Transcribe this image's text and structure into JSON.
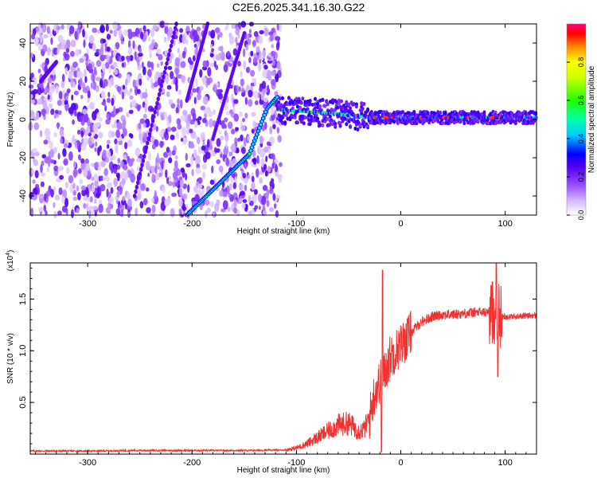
{
  "title": "C2E6.2025.341.16.30.G22",
  "chart_data": [
    {
      "type": "heatmap",
      "title": "C2E6.2025.341.16.30.G22",
      "xlabel": "Height of straight line (km)",
      "ylabel": "Frequency (Hz)",
      "xlim": [
        -355,
        130
      ],
      "ylim": [
        -50,
        50
      ],
      "xticks": [
        -300,
        -200,
        -100,
        0,
        100
      ],
      "xtick_labels": [
        "-300",
        "-200",
        "-100",
        "0",
        "100"
      ],
      "yticks": [
        -40,
        -20,
        0,
        20,
        40
      ],
      "ytick_labels": [
        "-40",
        "-20",
        "0",
        "20",
        "40"
      ],
      "colorbar": {
        "label": "Normalized spectral amplitude",
        "range": [
          0,
          1
        ],
        "ticks": [
          0.0,
          0.2,
          0.4,
          0.6,
          0.8
        ],
        "tick_labels": [
          "0.0",
          "0.2",
          "0.4",
          "0.6",
          "0.8"
        ]
      },
      "noise_region_x": [
        -355,
        -115
      ],
      "slanted_track": [
        [
          -205,
          -50
        ],
        [
          -145,
          -18
        ],
        [
          -128,
          6
        ],
        [
          -118,
          12
        ]
      ],
      "carrier_track": [
        [
          -118,
          5
        ],
        [
          -60,
          3
        ],
        [
          -30,
          1
        ],
        [
          0,
          1
        ],
        [
          130,
          1
        ]
      ]
    },
    {
      "type": "line",
      "xlabel": "Height of straight line (km)",
      "ylabel": "SNR (10 * v/v)",
      "y_multiplier": "(x10",
      "y_multiplier_exp": "4",
      "y_multiplier_close": ")",
      "xlim": [
        -355,
        130
      ],
      "ylim": [
        0,
        1.85
      ],
      "xticks": [
        -300,
        -200,
        -100,
        0,
        100
      ],
      "xtick_labels": [
        "-300",
        "-200",
        "-100",
        "0",
        "100"
      ],
      "yticks": [
        0.5,
        1.0,
        1.5
      ],
      "ytick_labels": [
        "0.5",
        "1.0",
        "1.5"
      ],
      "series": [
        {
          "name": "SNR",
          "color": "#ee3333",
          "x": [
            -355,
            -300,
            -250,
            -200,
            -150,
            -110,
            -100,
            -90,
            -80,
            -70,
            -60,
            -50,
            -45,
            -40,
            -35,
            -30,
            -25,
            -20,
            -18,
            -15,
            -10,
            -5,
            0,
            10,
            20,
            30,
            40,
            50,
            60,
            70,
            80,
            88,
            92,
            96,
            100,
            110,
            120,
            130
          ],
          "values": [
            0.03,
            0.03,
            0.035,
            0.035,
            0.035,
            0.04,
            0.06,
            0.1,
            0.16,
            0.22,
            0.28,
            0.3,
            0.26,
            0.22,
            0.24,
            0.35,
            0.6,
            0.7,
            0.72,
            0.8,
            0.95,
            1.0,
            1.05,
            1.18,
            1.28,
            1.33,
            1.35,
            1.35,
            1.36,
            1.37,
            1.37,
            1.38,
            1.36,
            1.33,
            1.33,
            1.33,
            1.34,
            1.34
          ]
        }
      ]
    }
  ]
}
